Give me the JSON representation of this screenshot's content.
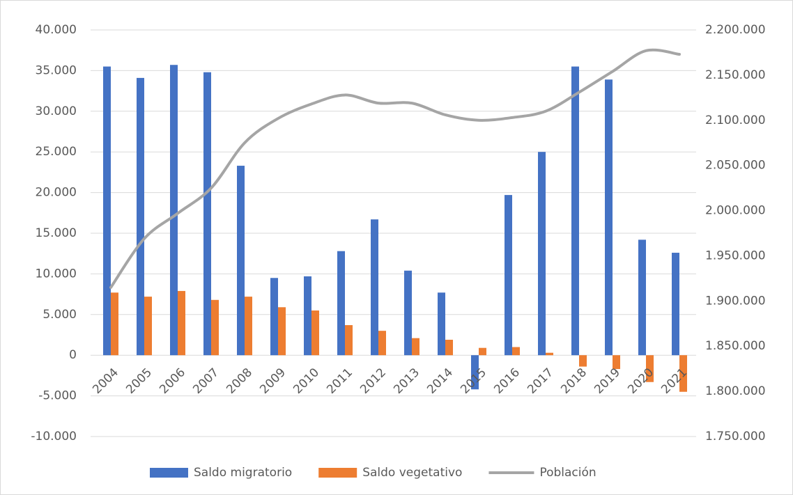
{
  "chart_data": {
    "type": "bar-line",
    "categories": [
      "2004",
      "2005",
      "2006",
      "2007",
      "2008",
      "2009",
      "2010",
      "2011",
      "2012",
      "2013",
      "2014",
      "2015",
      "2016",
      "2017",
      "2018",
      "2019",
      "2020",
      "2021"
    ],
    "series": [
      {
        "name": "Saldo migratorio",
        "color": "#4472c4",
        "type": "bar",
        "values": [
          35500,
          34100,
          35700,
          34800,
          23300,
          9500,
          9700,
          12800,
          16700,
          10400,
          7700,
          -4200,
          19700,
          25000,
          35500,
          33900,
          14200,
          12600
        ]
      },
      {
        "name": "Saldo vegetativo",
        "color": "#ed7d31",
        "type": "bar",
        "values": [
          7700,
          7200,
          7900,
          6800,
          7200,
          5900,
          5500,
          3700,
          3000,
          2100,
          1900,
          900,
          1000,
          300,
          -1400,
          -1700,
          -3300,
          -4500
        ]
      },
      {
        "name": "Población",
        "color": "#a5a5a5",
        "type": "line",
        "axis": "y2",
        "values": [
          1915000,
          1969000,
          1997000,
          2025000,
          2075000,
          2102000,
          2118000,
          2128000,
          2119000,
          2119000,
          2106000,
          2100000,
          2103000,
          2110000,
          2131000,
          2154000,
          2177000,
          2173000
        ]
      }
    ],
    "ylim": [
      -10000,
      40000
    ],
    "yticks": [
      {
        "value": -10000,
        "label": "-10.000"
      },
      {
        "value": -5000,
        "label": "-5.000"
      },
      0,
      {
        "value": 5000,
        "label": "5.000"
      },
      {
        "value": 10000,
        "label": "10.000"
      },
      {
        "value": 15000,
        "label": "15.000"
      },
      {
        "value": 20000,
        "label": "20.000"
      },
      {
        "value": 25000,
        "label": "25.000"
      },
      {
        "value": 30000,
        "label": "30.000"
      },
      {
        "value": 35000,
        "label": "35.000"
      },
      {
        "value": 40000,
        "label": "40.000"
      }
    ],
    "y2lim": [
      1750000,
      2200000
    ],
    "y2ticks": [
      {
        "value": 1750000,
        "label": "1.750.000"
      },
      {
        "value": 1800000,
        "label": "1.800.000"
      },
      {
        "value": 1850000,
        "label": "1.850.000"
      },
      {
        "value": 1900000,
        "label": "1.900.000"
      },
      {
        "value": 1950000,
        "label": "1.950.000"
      },
      {
        "value": 2000000,
        "label": "2.000.000"
      },
      {
        "value": 2050000,
        "label": "2.050.000"
      },
      {
        "value": 2100000,
        "label": "2.100.000"
      },
      {
        "value": 2150000,
        "label": "2.150.000"
      },
      {
        "value": 2200000,
        "label": "2.200.000"
      }
    ],
    "grid": true,
    "legend": "bottom"
  }
}
